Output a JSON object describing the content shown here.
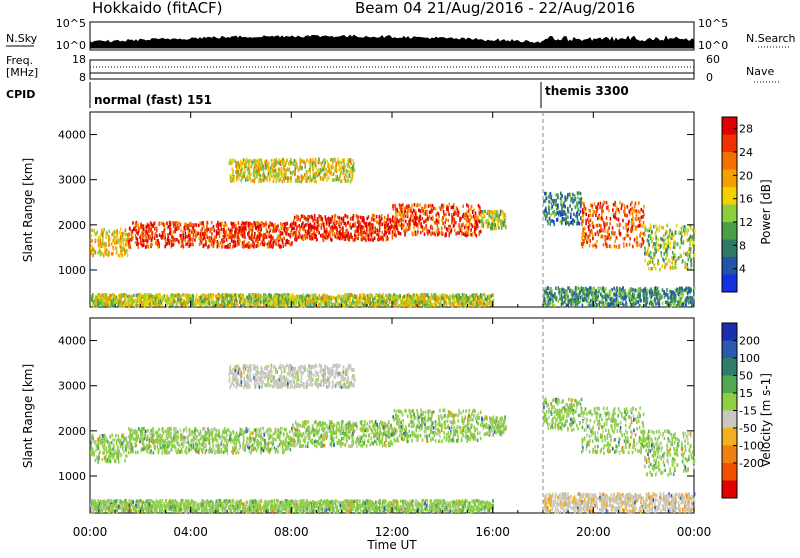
{
  "header": {
    "station": "Hokkaido (fitACF)",
    "beam_date": "Beam 04 21/Aug/2016 - 22/Aug/2016"
  },
  "status_panels": {
    "nsky_label": "N.Sky",
    "nsky_ticks": [
      "10^5",
      "10^0"
    ],
    "nsearch_ticks": [
      "10^5",
      "10^0"
    ],
    "nsearch_label": "N.Search",
    "freq_label_1": "Freq.",
    "freq_label_2": "[MHz]",
    "freq_ticks": [
      "18",
      "8"
    ],
    "nave_ticks": [
      "60",
      "0"
    ],
    "nave_label": "Nave",
    "cpid_label": "CPID",
    "cpid_entries": [
      {
        "label": "normal (fast) 151",
        "start": "00:00"
      },
      {
        "label": "themis 3300",
        "start": "18:00"
      }
    ]
  },
  "colors": {
    "power_scale": [
      "#1530e0",
      "#2255a8",
      "#2e7a64",
      "#4aa04a",
      "#8ccf3a",
      "#f5d000",
      "#f5a000",
      "#f57000",
      "#f03000",
      "#e00000"
    ],
    "velocity_scale": [
      "#1a2fb0",
      "#2a5ab0",
      "#2f7c6a",
      "#50a850",
      "#8ecf44",
      "#c8c8c0",
      "#f0b020",
      "#f08010",
      "#f05000",
      "#e00000"
    ],
    "frame": "#000000"
  },
  "chart_data": [
    {
      "type": "heatmap",
      "title": "",
      "xlabel": "Time UT",
      "ylabel": "Slant Range [km]",
      "x_ticks": [
        "00:00",
        "04:00",
        "08:00",
        "12:00",
        "16:00",
        "20:00",
        "00:00"
      ],
      "y_ticks": [
        1000,
        2000,
        3000,
        4000
      ],
      "xlim": [
        "00:00",
        "24:00"
      ],
      "ylim": [
        180,
        4500
      ],
      "colorbar_label": "Power [dB]",
      "colorbar_ticks": [
        4,
        8,
        12,
        16,
        20,
        24,
        28
      ],
      "colorbar_range": [
        0,
        30
      ],
      "scatter_bands": [
        {
          "t_start": 0.0,
          "t_end": 1.5,
          "range_low": 1300,
          "range_high": 1900,
          "value": 18
        },
        {
          "t_start": 1.5,
          "t_end": 8.0,
          "range_low": 1500,
          "range_high": 2050,
          "value": 26
        },
        {
          "t_start": 8.0,
          "t_end": 12.0,
          "range_low": 1650,
          "range_high": 2200,
          "value": 27
        },
        {
          "t_start": 12.0,
          "t_end": 15.5,
          "range_low": 1750,
          "range_high": 2450,
          "value": 25
        },
        {
          "t_start": 15.5,
          "t_end": 16.5,
          "range_low": 1900,
          "range_high": 2300,
          "value": 14
        },
        {
          "t_start": 5.5,
          "t_end": 10.5,
          "range_low": 2950,
          "range_high": 3450,
          "value": 16
        },
        {
          "t_start": 18.0,
          "t_end": 19.5,
          "range_low": 2000,
          "range_high": 2700,
          "value": 7
        },
        {
          "t_start": 19.5,
          "t_end": 22.0,
          "range_low": 1500,
          "range_high": 2500,
          "value": 24
        },
        {
          "t_start": 22.0,
          "t_end": 24.0,
          "range_low": 1000,
          "range_high": 2000,
          "value": 13
        },
        {
          "t_start": 18.0,
          "t_end": 24.0,
          "range_low": 200,
          "range_high": 600,
          "value": 9
        },
        {
          "t_start": 0.0,
          "t_end": 16.0,
          "range_low": 200,
          "range_high": 450,
          "value": 15
        }
      ]
    },
    {
      "type": "heatmap",
      "title": "",
      "xlabel": "Time UT",
      "ylabel": "Slant Range [km]",
      "x_ticks": [
        "00:00",
        "04:00",
        "08:00",
        "12:00",
        "16:00",
        "20:00",
        "00:00"
      ],
      "y_ticks": [
        1000,
        2000,
        3000,
        4000
      ],
      "xlim": [
        "00:00",
        "24:00"
      ],
      "ylim": [
        180,
        4500
      ],
      "colorbar_label": "Velocity [m s-1]",
      "colorbar_ticks": [
        200,
        100,
        50,
        15,
        -15,
        -50,
        -100,
        -200
      ],
      "scatter_bands": [
        {
          "t_start": 0.0,
          "t_end": 1.5,
          "range_low": 1300,
          "range_high": 1900,
          "value": 0
        },
        {
          "t_start": 1.5,
          "t_end": 8.0,
          "range_low": 1500,
          "range_high": 2050,
          "value": 0
        },
        {
          "t_start": 8.0,
          "t_end": 12.0,
          "range_low": 1650,
          "range_high": 2200,
          "value": 0
        },
        {
          "t_start": 12.0,
          "t_end": 15.5,
          "range_low": 1750,
          "range_high": 2450,
          "value": 0
        },
        {
          "t_start": 15.5,
          "t_end": 16.5,
          "range_low": 1900,
          "range_high": 2300,
          "value": 0
        },
        {
          "t_start": 5.5,
          "t_end": 10.5,
          "range_low": 2950,
          "range_high": 3450,
          "value": -30
        },
        {
          "t_start": 18.0,
          "t_end": 19.5,
          "range_low": 2000,
          "range_high": 2700,
          "value": 0
        },
        {
          "t_start": 19.5,
          "t_end": 22.0,
          "range_low": 1500,
          "range_high": 2500,
          "value": 0
        },
        {
          "t_start": 22.0,
          "t_end": 24.0,
          "range_low": 1000,
          "range_high": 2000,
          "value": 0
        },
        {
          "t_start": 18.0,
          "t_end": 24.0,
          "range_low": 200,
          "range_high": 600,
          "value": -40
        },
        {
          "t_start": 0.0,
          "t_end": 16.0,
          "range_low": 200,
          "range_high": 450,
          "value": 0
        }
      ]
    }
  ]
}
